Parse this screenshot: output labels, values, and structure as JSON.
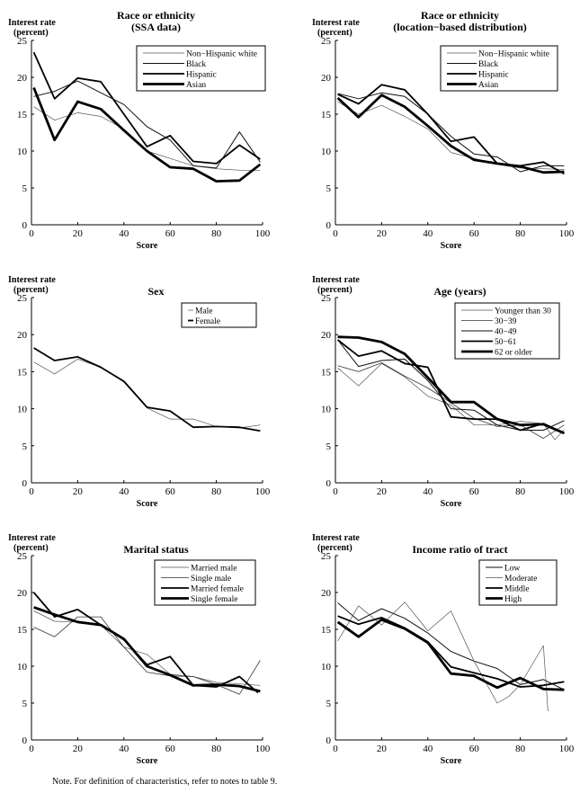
{
  "note": "Note. For definition of characteristics, refer to notes to table 9.",
  "chart_data": [
    {
      "type": "line",
      "title": "Race or ethnicity",
      "subtitle": "(SSA data)",
      "ylabel_line1": "Interest rate",
      "ylabel_line2": "(percent)",
      "xlabel": "Score",
      "xlim": [
        0,
        100
      ],
      "ylim": [
        0,
        25
      ],
      "xticks": [
        0,
        20,
        40,
        60,
        80,
        100
      ],
      "yticks": [
        0,
        5,
        10,
        15,
        20,
        25
      ],
      "grid": false,
      "legend_position": "top-right",
      "series": [
        {
          "name": "Non−Hispanic white",
          "style": "thin-gray",
          "x": [
            1,
            10,
            20,
            30,
            40,
            50,
            60,
            70,
            80,
            90,
            99
          ],
          "y": [
            16,
            14.2,
            15.2,
            14.7,
            13,
            10,
            9,
            8,
            7.6,
            7.4,
            7.4
          ]
        },
        {
          "name": "Black",
          "style": "thin",
          "x": [
            1,
            10,
            20,
            30,
            40,
            50,
            60,
            70,
            80,
            90,
            99
          ],
          "y": [
            17.4,
            18.1,
            19.5,
            17.9,
            16.3,
            13.3,
            11.5,
            8,
            7.7,
            12.6,
            8.5
          ]
        },
        {
          "name": "Hispanic",
          "style": "medium",
          "x": [
            1,
            10,
            20,
            30,
            40,
            50,
            60,
            70,
            80,
            90,
            99
          ],
          "y": [
            23.4,
            17.1,
            19.9,
            19.4,
            15,
            10.6,
            12.1,
            8.6,
            8.3,
            10.8,
            8.9
          ]
        },
        {
          "name": "Asian",
          "style": "thick",
          "x": [
            1,
            10,
            20,
            30,
            40,
            50,
            60,
            70,
            80,
            90,
            99
          ],
          "y": [
            18.6,
            11.5,
            16.7,
            15.7,
            12.8,
            10,
            7.8,
            7.6,
            5.9,
            6,
            8.2
          ]
        }
      ]
    },
    {
      "type": "line",
      "title": "Race or ethnicity",
      "subtitle": "(location−based distribution)",
      "ylabel_line1": "Interest rate",
      "ylabel_line2": "(percent)",
      "xlabel": "Score",
      "xlim": [
        0,
        100
      ],
      "ylim": [
        0,
        25
      ],
      "xticks": [
        0,
        20,
        40,
        60,
        80,
        100
      ],
      "yticks": [
        0,
        5,
        10,
        15,
        20,
        25
      ],
      "grid": false,
      "legend_position": "top-right",
      "series": [
        {
          "name": "Non−Hispanic white",
          "style": "thin-gray",
          "x": [
            1,
            10,
            20,
            30,
            40,
            50,
            60,
            70,
            80,
            90,
            99
          ],
          "y": [
            16.7,
            15,
            16.2,
            14.7,
            13,
            9.8,
            9,
            8.2,
            7.7,
            7.6,
            7.5
          ]
        },
        {
          "name": "Black",
          "style": "thin",
          "x": [
            1,
            10,
            20,
            30,
            40,
            50,
            60,
            70,
            80,
            90,
            99
          ],
          "y": [
            17.8,
            17.1,
            17.9,
            17.4,
            15,
            12,
            9.6,
            9.2,
            7.2,
            8,
            8
          ]
        },
        {
          "name": "Hispanic",
          "style": "medium",
          "x": [
            1,
            10,
            20,
            30,
            40,
            50,
            60,
            70,
            80,
            90,
            99
          ],
          "y": [
            17.7,
            16.4,
            19,
            18.3,
            15,
            11.3,
            11.9,
            8.3,
            8,
            8.5,
            6.9
          ]
        },
        {
          "name": "Asian",
          "style": "thick",
          "x": [
            1,
            10,
            20,
            30,
            40,
            50,
            60,
            70,
            80,
            90,
            99
          ],
          "y": [
            17.2,
            14.6,
            17.6,
            16,
            13.4,
            10.7,
            8.8,
            8.3,
            7.9,
            7.1,
            7.2
          ]
        }
      ]
    },
    {
      "type": "line",
      "title": "Sex",
      "subtitle": "",
      "ylabel_line1": "Interest rate",
      "ylabel_line2": "(percent)",
      "xlabel": "Score",
      "xlim": [
        0,
        100
      ],
      "ylim": [
        0,
        25
      ],
      "xticks": [
        0,
        20,
        40,
        60,
        80,
        100
      ],
      "yticks": [
        0,
        5,
        10,
        15,
        20,
        25
      ],
      "grid": false,
      "legend_position": "top-right",
      "series": [
        {
          "name": "Male",
          "style": "thin-gray",
          "x": [
            1,
            10,
            20,
            30,
            40,
            50,
            60,
            70,
            80,
            90,
            99
          ],
          "y": [
            16.3,
            14.7,
            16.7,
            15.6,
            13.6,
            10.1,
            8.6,
            8.6,
            7.6,
            7.4,
            7.8
          ]
        },
        {
          "name": "Female",
          "style": "medium",
          "x": [
            1,
            10,
            20,
            30,
            40,
            50,
            60,
            70,
            80,
            90,
            99
          ],
          "y": [
            18.2,
            16.5,
            17,
            15.6,
            13.7,
            10.2,
            9.7,
            7.5,
            7.6,
            7.5,
            7
          ]
        }
      ]
    },
    {
      "type": "line",
      "title": "Age (years)",
      "subtitle": "",
      "ylabel_line1": "Interest rate",
      "ylabel_line2": "(percent)",
      "xlabel": "Score",
      "xlim": [
        0,
        100
      ],
      "ylim": [
        0,
        25
      ],
      "xticks": [
        0,
        20,
        40,
        60,
        80,
        100
      ],
      "yticks": [
        0,
        5,
        10,
        15,
        20,
        25
      ],
      "grid": false,
      "legend_position": "top-right",
      "series": [
        {
          "name": "Younger than 30",
          "style": "thin-gray",
          "x": [
            1,
            10,
            20,
            30,
            40,
            50,
            60,
            70,
            80,
            90,
            95,
            99
          ],
          "y": [
            15.5,
            13.1,
            16.1,
            14.3,
            11.7,
            10.5,
            7.8,
            7.8,
            8.3,
            8,
            5.8,
            7.2
          ]
        },
        {
          "name": "30−39",
          "style": "thin-gray2",
          "x": [
            1,
            10,
            20,
            30,
            40,
            50,
            60,
            70,
            80,
            90,
            99
          ],
          "y": [
            15.8,
            15,
            16.2,
            14.4,
            12.8,
            10.8,
            8.7,
            7.6,
            7.8,
            6,
            7.8
          ]
        },
        {
          "name": "40−49",
          "style": "thin",
          "x": [
            1,
            10,
            20,
            30,
            40,
            50,
            60,
            70,
            80,
            90,
            99
          ],
          "y": [
            19.3,
            15.7,
            16.5,
            16.7,
            13.8,
            10,
            9.8,
            7.8,
            7.1,
            7.1,
            8.4
          ]
        },
        {
          "name": "50−61",
          "style": "medium",
          "x": [
            1,
            10,
            20,
            30,
            40,
            50,
            60,
            70,
            80,
            90,
            99
          ],
          "y": [
            19.3,
            17.1,
            17.8,
            16.1,
            15.6,
            8.9,
            8.6,
            8.6,
            7.1,
            8,
            6.7
          ]
        },
        {
          "name": "62 or older",
          "style": "thick",
          "x": [
            1,
            10,
            20,
            30,
            40,
            50,
            60,
            70,
            80,
            90,
            99
          ],
          "y": [
            19.7,
            19.6,
            19,
            17.4,
            14.2,
            10.9,
            10.9,
            8.6,
            7.8,
            7.9,
            6.7
          ]
        }
      ]
    },
    {
      "type": "line",
      "title": "Marital status",
      "subtitle": "",
      "ylabel_line1": "Interest rate",
      "ylabel_line2": "(percent)",
      "xlabel": "Score",
      "xlim": [
        0,
        100
      ],
      "ylim": [
        0,
        25
      ],
      "xticks": [
        0,
        20,
        40,
        60,
        80,
        100
      ],
      "yticks": [
        0,
        5,
        10,
        15,
        20,
        25
      ],
      "grid": false,
      "legend_position": "top-right",
      "series": [
        {
          "name": "Married male",
          "style": "thin-gray",
          "x": [
            1,
            10,
            20,
            30,
            40,
            50,
            60,
            70,
            80,
            90,
            99
          ],
          "y": [
            17.5,
            16.1,
            16,
            15.6,
            12.6,
            11.6,
            8.9,
            8.6,
            7.8,
            7.6,
            7.4
          ]
        },
        {
          "name": "Single male",
          "style": "thin-gray2",
          "x": [
            1,
            10,
            20,
            30,
            40,
            50,
            60,
            70,
            80,
            90,
            99
          ],
          "y": [
            15.3,
            14,
            16.7,
            16.7,
            12.6,
            9.2,
            8.7,
            8.6,
            7.5,
            6.2,
            10.8
          ]
        },
        {
          "name": "Married female",
          "style": "medium",
          "x": [
            1,
            10,
            20,
            30,
            40,
            50,
            60,
            70,
            80,
            90,
            98
          ],
          "y": [
            20,
            16.7,
            17.7,
            15.6,
            13.6,
            10.2,
            11.3,
            7.4,
            7.2,
            8.6,
            6.4
          ]
        },
        {
          "name": "Single female",
          "style": "thick",
          "x": [
            1,
            10,
            20,
            30,
            40,
            50,
            60,
            70,
            80,
            90,
            99
          ],
          "y": [
            18,
            17,
            16,
            15.6,
            13.7,
            10,
            8.8,
            7.4,
            7.5,
            7.3,
            6.6
          ]
        }
      ]
    },
    {
      "type": "line",
      "title": "Income ratio of tract",
      "subtitle": "",
      "ylabel_line1": "Interest rate",
      "ylabel_line2": "(percent)",
      "xlabel": "Score",
      "xlim": [
        0,
        100
      ],
      "ylim": [
        0,
        25
      ],
      "xticks": [
        0,
        20,
        40,
        60,
        80,
        100
      ],
      "yticks": [
        0,
        5,
        10,
        15,
        20,
        25
      ],
      "grid": false,
      "legend_position": "top-right",
      "series": [
        {
          "name": "Low",
          "style": "thin",
          "x": [
            1,
            10,
            20,
            30,
            40,
            50,
            60,
            70,
            80,
            90,
            99
          ],
          "y": [
            18.6,
            16.2,
            17.8,
            16.5,
            14.5,
            12,
            10.7,
            9.7,
            7.5,
            8.2,
            6.8
          ]
        },
        {
          "name": "Moderate",
          "style": "thin-gray",
          "x": [
            1,
            10,
            20,
            30,
            40,
            50,
            60,
            70,
            75,
            80,
            90,
            92
          ],
          "y": [
            13.4,
            18.2,
            15.6,
            18.7,
            14.8,
            17.5,
            10.7,
            5,
            5.9,
            7.5,
            12.8,
            3.9
          ]
        },
        {
          "name": "Middle",
          "style": "medium",
          "x": [
            1,
            10,
            20,
            30,
            40,
            50,
            60,
            70,
            80,
            90,
            99
          ],
          "y": [
            16.8,
            15.7,
            16.6,
            15.2,
            13.3,
            9.9,
            9.1,
            8.3,
            7.2,
            7.4,
            7.9
          ]
        },
        {
          "name": "High",
          "style": "thick",
          "x": [
            1,
            10,
            20,
            30,
            40,
            50,
            60,
            70,
            80,
            90,
            99
          ],
          "y": [
            16,
            14,
            16.3,
            15.1,
            13.2,
            9,
            8.7,
            7.1,
            8.4,
            6.9,
            6.8
          ]
        }
      ]
    }
  ]
}
